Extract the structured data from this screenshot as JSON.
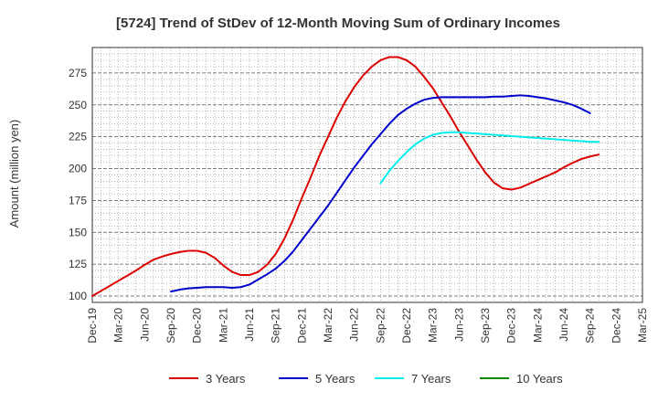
{
  "chart_data": {
    "type": "line",
    "title": "[5724]  Trend of StDev of 12-Month Moving Sum of Ordinary Incomes",
    "ylabel": "Amount (million yen)",
    "xlabel": "",
    "x_ticks": [
      "Dec-19",
      "Mar-20",
      "Jun-20",
      "Sep-20",
      "Dec-20",
      "Mar-21",
      "Jun-21",
      "Sep-21",
      "Dec-21",
      "Mar-22",
      "Jun-22",
      "Sep-22",
      "Dec-22",
      "Mar-23",
      "Jun-23",
      "Sep-23",
      "Dec-23",
      "Mar-24",
      "Jun-24",
      "Sep-24",
      "Dec-24",
      "Mar-25"
    ],
    "y_ticks": [
      100,
      125,
      150,
      175,
      200,
      225,
      250,
      275
    ],
    "ylim": [
      95,
      295
    ],
    "grid": true,
    "legend_position": "bottom",
    "series": [
      {
        "name": "3 Years",
        "color": "#dd0000",
        "start_index": 0,
        "values": [
          100,
          104,
          108,
          112,
          116,
          120,
          124.5,
          128.5,
          131,
          133,
          134.5,
          135.5,
          135.5,
          134,
          130,
          124,
          119,
          116.5,
          116.5,
          119,
          124.5,
          133,
          145,
          160,
          177,
          193,
          210,
          225,
          240,
          253,
          264,
          273,
          280,
          285,
          287.5,
          287.5,
          285,
          280,
          272,
          263,
          252,
          241,
          229,
          218,
          207,
          197,
          189,
          184.5,
          183.5,
          185,
          188,
          191,
          194,
          197,
          201,
          204.5,
          207.5,
          209.5,
          211
        ]
      },
      {
        "name": "5 Years",
        "color": "#0000cc",
        "start_index": 9,
        "values": [
          103.5,
          105,
          106,
          106.5,
          107,
          107,
          107,
          106.5,
          107,
          109,
          113,
          117,
          121.5,
          127.5,
          135,
          144,
          153,
          162,
          171,
          181,
          191,
          201,
          210,
          219,
          227,
          235,
          242,
          247,
          251,
          254,
          255.5,
          256,
          256,
          256,
          256,
          256,
          256,
          256.5,
          256.5,
          257,
          257.5,
          257,
          256,
          255,
          253.5,
          252,
          250,
          247,
          243.5
        ]
      },
      {
        "name": "7 Years",
        "color": "#00eeee",
        "start_index": 33,
        "values": [
          188.5,
          198,
          206,
          213,
          219,
          223.5,
          226.5,
          228,
          228.5,
          228.5,
          228,
          227.5,
          227,
          226.5,
          226,
          225.5,
          225,
          224.5,
          224,
          223.5,
          223,
          222.5,
          222,
          221.5,
          221,
          221
        ]
      },
      {
        "name": "10 Years",
        "color": "#008800",
        "start_index": 0,
        "values": []
      }
    ]
  }
}
